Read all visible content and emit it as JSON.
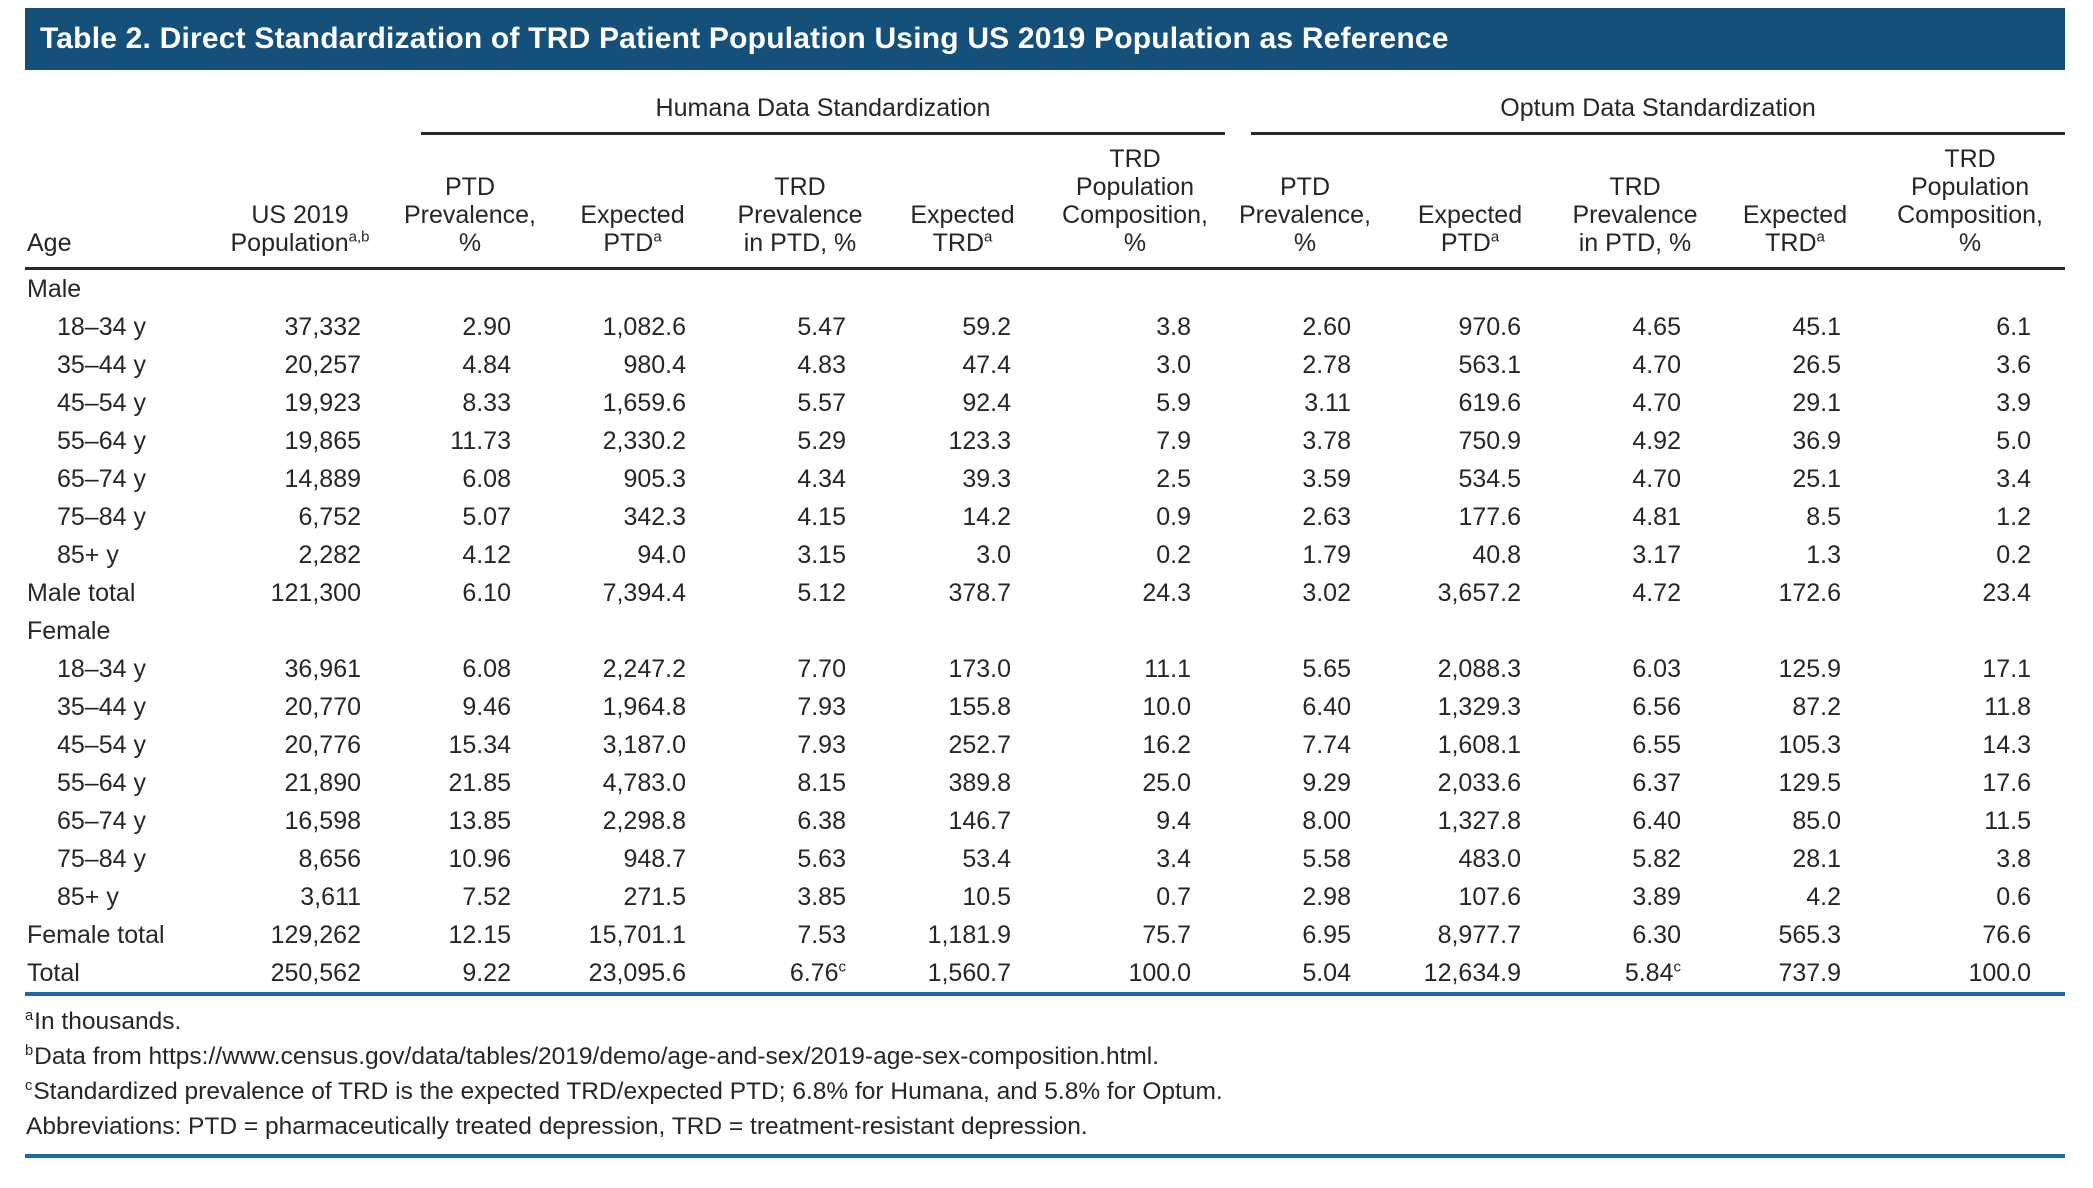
{
  "title": "Table 2. Direct Standardization of TRD Patient Population Using US 2019 Population as Reference",
  "colors": {
    "title_bar_blue": "#14507a",
    "rule_blue": "#1b6ca0",
    "rule_dark": "#2b2826"
  },
  "groups": [
    "Humana Data Standardization",
    "Optum Data Standardization"
  ],
  "header": {
    "age": "Age",
    "uspop": {
      "lines": [
        "US 2019",
        "Population"
      ],
      "sup": "a,b"
    },
    "metrics": [
      {
        "lines": [
          "PTD",
          "Prevalence,",
          "%"
        ],
        "sup": ""
      },
      {
        "lines": [
          "Expected",
          "PTD"
        ],
        "sup": "a"
      },
      {
        "lines": [
          "TRD",
          "Prevalence",
          "in PTD, %"
        ],
        "sup": ""
      },
      {
        "lines": [
          "Expected",
          "TRD"
        ],
        "sup": "a"
      },
      {
        "lines": [
          "TRD",
          "Population",
          "Composition,",
          "%"
        ],
        "sup": ""
      }
    ]
  },
  "table": {
    "rows": [
      {
        "section": "Male"
      },
      {
        "label": "18–34 y",
        "indent": true,
        "cells": [
          "37,332",
          "2.90",
          "1,082.6",
          "5.47",
          "59.2",
          "3.8",
          "2.60",
          "970.6",
          "4.65",
          "45.1",
          "6.1"
        ]
      },
      {
        "label": "35–44 y",
        "indent": true,
        "cells": [
          "20,257",
          "4.84",
          "980.4",
          "4.83",
          "47.4",
          "3.0",
          "2.78",
          "563.1",
          "4.70",
          "26.5",
          "3.6"
        ]
      },
      {
        "label": "45–54 y",
        "indent": true,
        "cells": [
          "19,923",
          "8.33",
          "1,659.6",
          "5.57",
          "92.4",
          "5.9",
          "3.11",
          "619.6",
          "4.70",
          "29.1",
          "3.9"
        ]
      },
      {
        "label": "55–64 y",
        "indent": true,
        "cells": [
          "19,865",
          "11.73",
          "2,330.2",
          "5.29",
          "123.3",
          "7.9",
          "3.78",
          "750.9",
          "4.92",
          "36.9",
          "5.0"
        ]
      },
      {
        "label": "65–74 y",
        "indent": true,
        "cells": [
          "14,889",
          "6.08",
          "905.3",
          "4.34",
          "39.3",
          "2.5",
          "3.59",
          "534.5",
          "4.70",
          "25.1",
          "3.4"
        ]
      },
      {
        "label": "75–84 y",
        "indent": true,
        "cells": [
          "6,752",
          "5.07",
          "342.3",
          "4.15",
          "14.2",
          "0.9",
          "2.63",
          "177.6",
          "4.81",
          "8.5",
          "1.2"
        ]
      },
      {
        "label": "85+ y",
        "indent": true,
        "cells": [
          "2,282",
          "4.12",
          "94.0",
          "3.15",
          "3.0",
          "0.2",
          "1.79",
          "40.8",
          "3.17",
          "1.3",
          "0.2"
        ]
      },
      {
        "label": "Male total",
        "indent": false,
        "cells": [
          "121,300",
          "6.10",
          "7,394.4",
          "5.12",
          "378.7",
          "24.3",
          "3.02",
          "3,657.2",
          "4.72",
          "172.6",
          "23.4"
        ]
      },
      {
        "section": "Female"
      },
      {
        "label": "18–34 y",
        "indent": true,
        "cells": [
          "36,961",
          "6.08",
          "2,247.2",
          "7.70",
          "173.0",
          "11.1",
          "5.65",
          "2,088.3",
          "6.03",
          "125.9",
          "17.1"
        ]
      },
      {
        "label": "35–44 y",
        "indent": true,
        "cells": [
          "20,770",
          "9.46",
          "1,964.8",
          "7.93",
          "155.8",
          "10.0",
          "6.40",
          "1,329.3",
          "6.56",
          "87.2",
          "11.8"
        ]
      },
      {
        "label": "45–54 y",
        "indent": true,
        "cells": [
          "20,776",
          "15.34",
          "3,187.0",
          "7.93",
          "252.7",
          "16.2",
          "7.74",
          "1,608.1",
          "6.55",
          "105.3",
          "14.3"
        ]
      },
      {
        "label": "55–64 y",
        "indent": true,
        "cells": [
          "21,890",
          "21.85",
          "4,783.0",
          "8.15",
          "389.8",
          "25.0",
          "9.29",
          "2,033.6",
          "6.37",
          "129.5",
          "17.6"
        ]
      },
      {
        "label": "65–74 y",
        "indent": true,
        "cells": [
          "16,598",
          "13.85",
          "2,298.8",
          "6.38",
          "146.7",
          "9.4",
          "8.00",
          "1,327.8",
          "6.40",
          "85.0",
          "11.5"
        ]
      },
      {
        "label": "75–84 y",
        "indent": true,
        "cells": [
          "8,656",
          "10.96",
          "948.7",
          "5.63",
          "53.4",
          "3.4",
          "5.58",
          "483.0",
          "5.82",
          "28.1",
          "3.8"
        ]
      },
      {
        "label": "85+ y",
        "indent": true,
        "cells": [
          "3,611",
          "7.52",
          "271.5",
          "3.85",
          "10.5",
          "0.7",
          "2.98",
          "107.6",
          "3.89",
          "4.2",
          "0.6"
        ]
      },
      {
        "label": "Female total",
        "indent": false,
        "cells": [
          "129,262",
          "12.15",
          "15,701.1",
          "7.53",
          "1,181.9",
          "75.7",
          "6.95",
          "8,977.7",
          "6.30",
          "565.3",
          "76.6"
        ]
      },
      {
        "label": "Total",
        "indent": false,
        "cells": [
          "250,562",
          "9.22",
          "23,095.6",
          {
            "v": "6.76",
            "sup": "c"
          },
          "1,560.7",
          "100.0",
          "5.04",
          "12,634.9",
          {
            "v": "5.84",
            "sup": "c"
          },
          "737.9",
          "100.0"
        ]
      }
    ]
  },
  "footnotes": [
    {
      "sup": "a",
      "text": "In thousands."
    },
    {
      "sup": "b",
      "text": "Data from https://www.census.gov/data/tables/2019/demo/age-and-sex/2019-age-sex-composition.html."
    },
    {
      "sup": "c",
      "text": "Standardized prevalence of TRD is the expected TRD/expected PTD; 6.8% for Humana, and 5.8% for Optum."
    },
    {
      "sup": "",
      "text": "Abbreviations:  PTD = pharmaceutically treated depression, TRD = treatment-resistant depression."
    }
  ]
}
